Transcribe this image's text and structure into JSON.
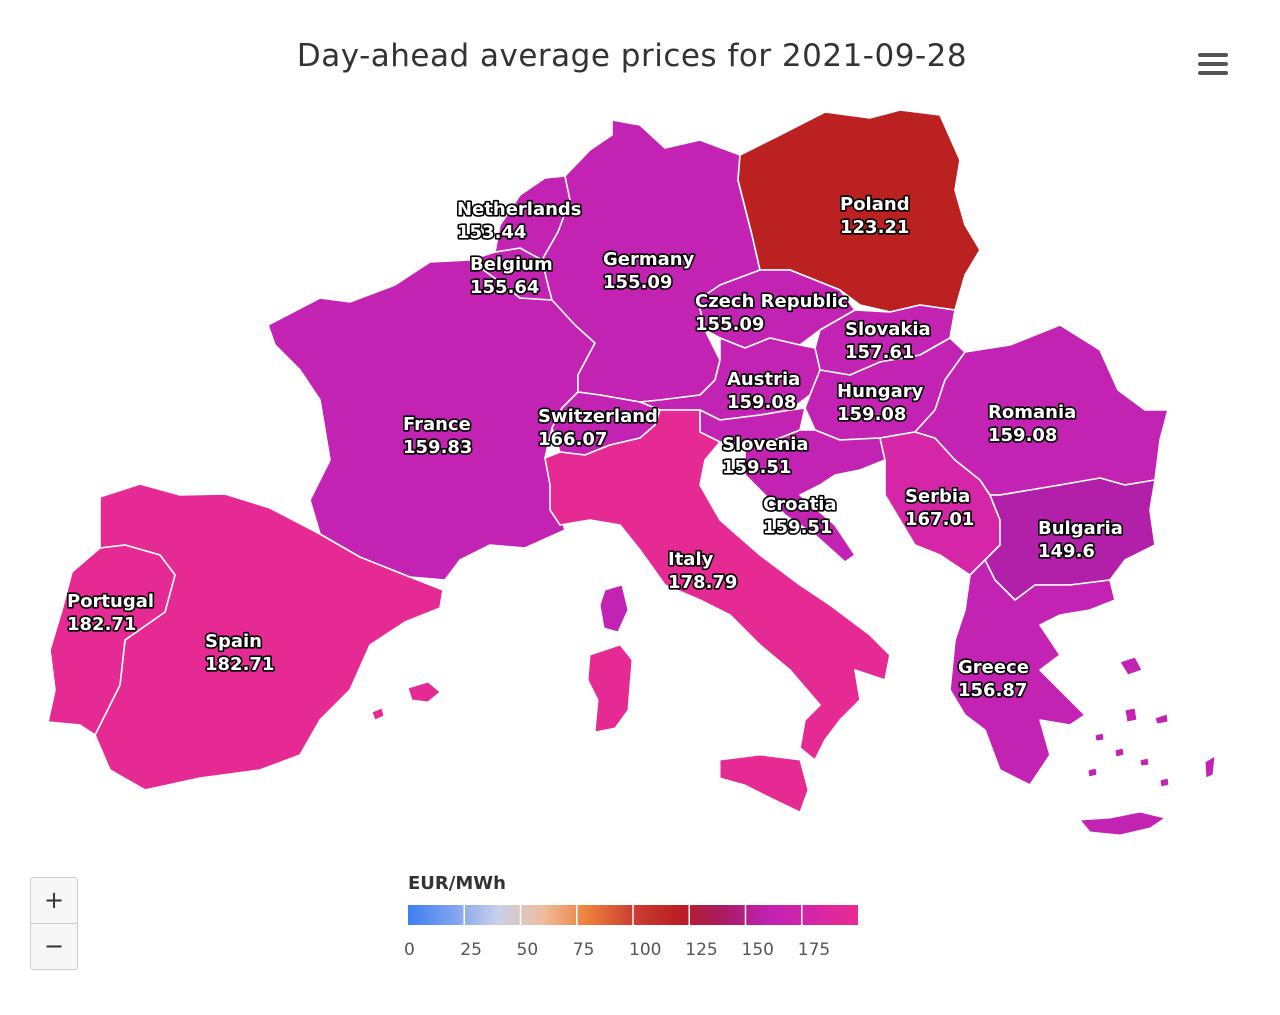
{
  "title": "Day-ahead average prices for 2021-09-28",
  "menu_icon": "hamburger-menu-icon",
  "zoom": {
    "in_label": "+",
    "out_label": "−"
  },
  "legend": {
    "title": "EUR/MWh",
    "ticks": [
      "0",
      "25",
      "50",
      "75",
      "100",
      "125",
      "150",
      "175"
    ],
    "colors": [
      "#3f7ef2",
      "#7da2ee",
      "#c8d0ea",
      "#eebd9c",
      "#ec7f3a",
      "#cc3f33",
      "#bb1f22",
      "#a81c63",
      "#c022b3",
      "#d426a6",
      "#ec2a92"
    ]
  },
  "countries": [
    {
      "name": "Netherlands",
      "value": "153.44"
    },
    {
      "name": "Poland",
      "value": "123.21"
    },
    {
      "name": "Belgium",
      "value": "155.64"
    },
    {
      "name": "Germany",
      "value": "155.09"
    },
    {
      "name": "Czech Republic",
      "value": "155.09"
    },
    {
      "name": "Slovakia",
      "value": "157.61"
    },
    {
      "name": "Austria",
      "value": "159.08"
    },
    {
      "name": "Hungary",
      "value": "159.08"
    },
    {
      "name": "France",
      "value": "159.83"
    },
    {
      "name": "Switzerland",
      "value": "166.07"
    },
    {
      "name": "Romania",
      "value": "159.08"
    },
    {
      "name": "Slovenia",
      "value": "159.51"
    },
    {
      "name": "Croatia",
      "value": "159.51"
    },
    {
      "name": "Serbia",
      "value": "167.01"
    },
    {
      "name": "Bulgaria",
      "value": "149.6"
    },
    {
      "name": "Italy",
      "value": "178.79"
    },
    {
      "name": "Portugal",
      "value": "182.71"
    },
    {
      "name": "Spain",
      "value": "182.71"
    },
    {
      "name": "Greece",
      "value": "156.87"
    }
  ]
}
